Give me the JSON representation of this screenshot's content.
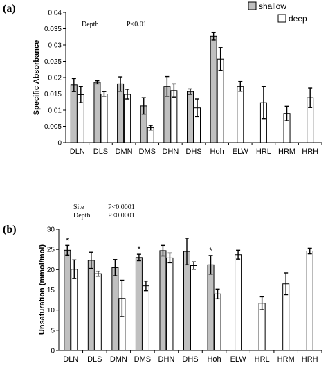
{
  "legend": [
    {
      "name": "shallow",
      "color": "#c0c0c0"
    },
    {
      "name": "deep",
      "color": "#ffffff"
    }
  ],
  "chart_data": [
    {
      "panel_label": "(a)",
      "type": "bar",
      "ylabel": "Specific Absorbance",
      "xlabel": "",
      "ylim": [
        0,
        0.04
      ],
      "yticks": [
        "0",
        "0.005",
        "0.01",
        "0.015",
        "0.02",
        "0.025",
        "0.03",
        "0.035",
        "0.04"
      ],
      "categories": [
        "DLN",
        "DLS",
        "DMN",
        "DMS",
        "DHN",
        "DHS",
        "Hoh",
        "ELW",
        "HRL",
        "HRM",
        "HRH"
      ],
      "series": [
        {
          "name": "shallow",
          "values": [
            0.0177,
            0.0185,
            0.018,
            0.0113,
            0.0173,
            0.0157,
            0.0327,
            null,
            null,
            null,
            null
          ],
          "errors": [
            0.002,
            0.0005,
            0.0022,
            0.0025,
            0.003,
            0.0008,
            0.0012,
            null,
            null,
            null,
            null
          ]
        },
        {
          "name": "deep",
          "values": [
            0.0148,
            0.015,
            0.0149,
            0.0046,
            0.016,
            0.0107,
            0.0257,
            0.0173,
            0.0123,
            0.009,
            0.0138
          ],
          "errors": [
            0.0025,
            0.0007,
            0.0015,
            0.0007,
            0.002,
            0.0027,
            0.0035,
            0.0015,
            0.005,
            0.0022,
            0.003
          ]
        }
      ],
      "annotations": [
        {
          "text": "Depth"
        },
        {
          "text": "P<0.01"
        }
      ],
      "stars": []
    },
    {
      "panel_label": "(b)",
      "type": "bar",
      "ylabel": "Unsaturation (mmol/mol)",
      "xlabel": "",
      "ylim": [
        0,
        30
      ],
      "yticks": [
        "0",
        "5",
        "10",
        "15",
        "20",
        "25",
        "30"
      ],
      "categories": [
        "DLN",
        "DLS",
        "DMN",
        "DMS",
        "DHN",
        "DHS",
        "Hoh",
        "ELW",
        "HRL",
        "HRM",
        "HRH"
      ],
      "series": [
        {
          "name": "shallow",
          "values": [
            24.8,
            22.3,
            20.5,
            23.0,
            24.7,
            24.5,
            21.2,
            null,
            null,
            null,
            null
          ],
          "errors": [
            1.2,
            2.0,
            2.0,
            0.8,
            1.3,
            3.3,
            2.3,
            null,
            null,
            null,
            null
          ]
        },
        {
          "name": "deep",
          "values": [
            20.1,
            19.0,
            12.9,
            16.0,
            22.9,
            21.0,
            14.0,
            23.7,
            11.7,
            16.5,
            24.6
          ],
          "errors": [
            2.3,
            0.6,
            4.5,
            1.2,
            1.2,
            0.9,
            1.2,
            1.1,
            1.6,
            2.7,
            0.7
          ]
        }
      ],
      "annotations": [
        {
          "text": "Site"
        },
        {
          "text": "P<0.0001"
        },
        {
          "text": "Depth"
        },
        {
          "text": "P<0.0001"
        }
      ],
      "stars": [
        {
          "category": "DLN",
          "text": "*"
        },
        {
          "category": "DMS",
          "text": "*"
        },
        {
          "category": "Hoh",
          "text": "*"
        }
      ]
    }
  ]
}
